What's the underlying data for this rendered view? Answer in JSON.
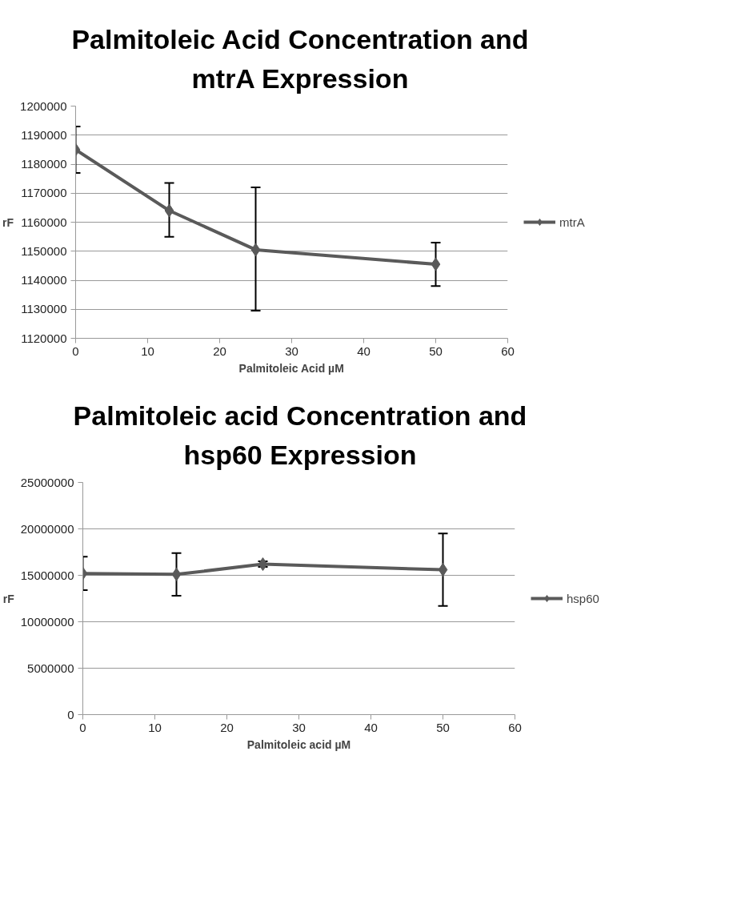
{
  "chart_data": [
    {
      "type": "line",
      "title": "Palmitoleic Acid Concentration and mtrA Expression",
      "xlabel": "Palmitoleic Acid µM",
      "ylabel": "rF",
      "x": [
        0,
        13,
        25,
        50
      ],
      "series": [
        {
          "name": "mtrA",
          "color": "#5a5a5a",
          "values": [
            1185000,
            1164000,
            1150500,
            1145500
          ],
          "errors": [
            [
              1177000,
              1193000
            ],
            [
              1155000,
              1173500
            ],
            [
              1129500,
              1172000
            ],
            [
              1138000,
              1153000
            ]
          ]
        }
      ],
      "xlim": [
        0,
        60
      ],
      "xticks": [
        0,
        10,
        20,
        30,
        40,
        50,
        60
      ],
      "ylim": [
        1120000,
        1200000
      ],
      "yticks": [
        1120000,
        1130000,
        1140000,
        1150000,
        1160000,
        1170000,
        1180000,
        1190000,
        1200000
      ],
      "grid": "y",
      "legend": "right",
      "marker": "diamond",
      "line_style": "solid"
    },
    {
      "type": "line",
      "title": "Palmitoleic acid Concentration and hsp60 Expression",
      "xlabel": "Palmitoleic acid µM",
      "ylabel": "rF",
      "x": [
        0,
        13,
        25,
        50
      ],
      "series": [
        {
          "name": "hsp60",
          "color": "#5a5a5a",
          "values": [
            15200000,
            15100000,
            16200000,
            15600000
          ],
          "errors": [
            [
              13400000,
              17000000
            ],
            [
              12800000,
              17400000
            ],
            [
              15900000,
              16500000
            ],
            [
              11700000,
              19500000
            ]
          ]
        }
      ],
      "xlim": [
        0,
        60
      ],
      "xticks": [
        0,
        10,
        20,
        30,
        40,
        50,
        60
      ],
      "ylim": [
        0,
        25000000
      ],
      "yticks": [
        0,
        5000000,
        10000000,
        15000000,
        20000000,
        25000000
      ],
      "grid": "y",
      "legend": "right",
      "marker": "diamond",
      "line_style": "solid"
    }
  ]
}
